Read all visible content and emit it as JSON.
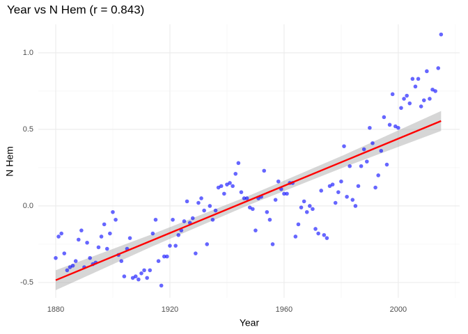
{
  "chart_data": {
    "type": "scatter",
    "title": "Year vs N Hem (r = 0.843)",
    "x_label": "Year",
    "y_label": "N Hem",
    "xlim": [
      1873.9,
      2021.5
    ],
    "ylim": [
      -0.6,
      1.186
    ],
    "xticks": [
      1880,
      1920,
      1960,
      2000
    ],
    "yticks": [
      {
        "value": -0.5,
        "label": "-0.5"
      },
      {
        "value": 0.0,
        "label": "0.0"
      },
      {
        "value": 0.5,
        "label": "0.5"
      },
      {
        "value": 1.0,
        "label": "1.0"
      }
    ],
    "minor_xticks": [
      1900,
      1940,
      1980,
      2020
    ],
    "minor_yticks": [
      -0.25,
      0.25,
      0.75
    ],
    "grid": true,
    "color": "#0000ff",
    "x": [
      1880,
      1881,
      1882,
      1883,
      1884,
      1885,
      1886,
      1887,
      1888,
      1889,
      1890,
      1891,
      1892,
      1893,
      1894,
      1895,
      1896,
      1897,
      1898,
      1899,
      1900,
      1901,
      1902,
      1903,
      1904,
      1905,
      1906,
      1907,
      1908,
      1909,
      1910,
      1911,
      1912,
      1913,
      1914,
      1915,
      1916,
      1917,
      1918,
      1919,
      1920,
      1921,
      1922,
      1923,
      1924,
      1925,
      1926,
      1927,
      1928,
      1929,
      1930,
      1931,
      1932,
      1933,
      1934,
      1935,
      1936,
      1937,
      1938,
      1939,
      1940,
      1941,
      1942,
      1943,
      1944,
      1945,
      1946,
      1947,
      1948,
      1949,
      1950,
      1951,
      1952,
      1953,
      1954,
      1955,
      1956,
      1957,
      1958,
      1959,
      1960,
      1961,
      1962,
      1963,
      1964,
      1965,
      1966,
      1967,
      1968,
      1969,
      1970,
      1971,
      1972,
      1973,
      1974,
      1975,
      1976,
      1977,
      1978,
      1979,
      1980,
      1981,
      1982,
      1983,
      1984,
      1985,
      1986,
      1987,
      1988,
      1989,
      1990,
      1991,
      1992,
      1993,
      1994,
      1995,
      1996,
      1997,
      1998,
      1999,
      2000,
      2001,
      2002,
      2003,
      2004,
      2005,
      2006,
      2007,
      2008,
      2009,
      2010,
      2011,
      2012,
      2013,
      2014,
      2015
    ],
    "values": [
      -0.34,
      -0.2,
      -0.18,
      -0.31,
      -0.42,
      -0.4,
      -0.39,
      -0.36,
      -0.22,
      -0.16,
      -0.4,
      -0.24,
      -0.34,
      -0.38,
      -0.37,
      -0.27,
      -0.2,
      -0.12,
      -0.28,
      -0.18,
      -0.04,
      -0.09,
      -0.32,
      -0.36,
      -0.46,
      -0.28,
      -0.21,
      -0.47,
      -0.46,
      -0.48,
      -0.44,
      -0.42,
      -0.47,
      -0.42,
      -0.18,
      -0.09,
      -0.36,
      -0.52,
      -0.33,
      -0.33,
      -0.26,
      -0.09,
      -0.26,
      -0.19,
      -0.16,
      -0.1,
      0.03,
      -0.11,
      -0.08,
      -0.31,
      0.02,
      0.05,
      -0.03,
      -0.25,
      0.0,
      -0.09,
      -0.03,
      0.12,
      0.13,
      0.08,
      0.14,
      0.15,
      0.13,
      0.21,
      0.28,
      0.09,
      0.05,
      0.05,
      -0.01,
      -0.02,
      -0.16,
      0.05,
      0.06,
      0.23,
      -0.04,
      -0.09,
      -0.25,
      0.04,
      0.16,
      0.11,
      0.08,
      0.08,
      0.15,
      0.15,
      -0.2,
      -0.12,
      -0.01,
      0.03,
      -0.04,
      0.0,
      -0.02,
      -0.15,
      -0.18,
      0.1,
      -0.19,
      -0.21,
      0.13,
      0.14,
      0.02,
      0.09,
      0.16,
      0.39,
      0.06,
      0.26,
      0.04,
      0.0,
      0.13,
      0.26,
      0.37,
      0.29,
      0.51,
      0.41,
      0.12,
      0.2,
      0.36,
      0.58,
      0.27,
      0.53,
      0.73,
      0.52,
      0.51,
      0.64,
      0.7,
      0.72,
      0.67,
      0.83,
      0.78,
      0.83,
      0.65,
      0.69,
      0.88,
      0.7,
      0.76,
      0.75,
      0.9,
      1.12
    ],
    "fit": {
      "color": "#ff0000",
      "band_color": "#999999",
      "x": [
        1880,
        1913.75,
        1947.5,
        1981.25,
        2015
      ],
      "y": [
        -0.485,
        -0.225,
        0.035,
        0.295,
        0.555
      ],
      "lower": [
        -0.55,
        -0.265,
        0.005,
        0.255,
        0.49
      ],
      "upper": [
        -0.42,
        -0.185,
        0.065,
        0.335,
        0.62
      ]
    }
  }
}
